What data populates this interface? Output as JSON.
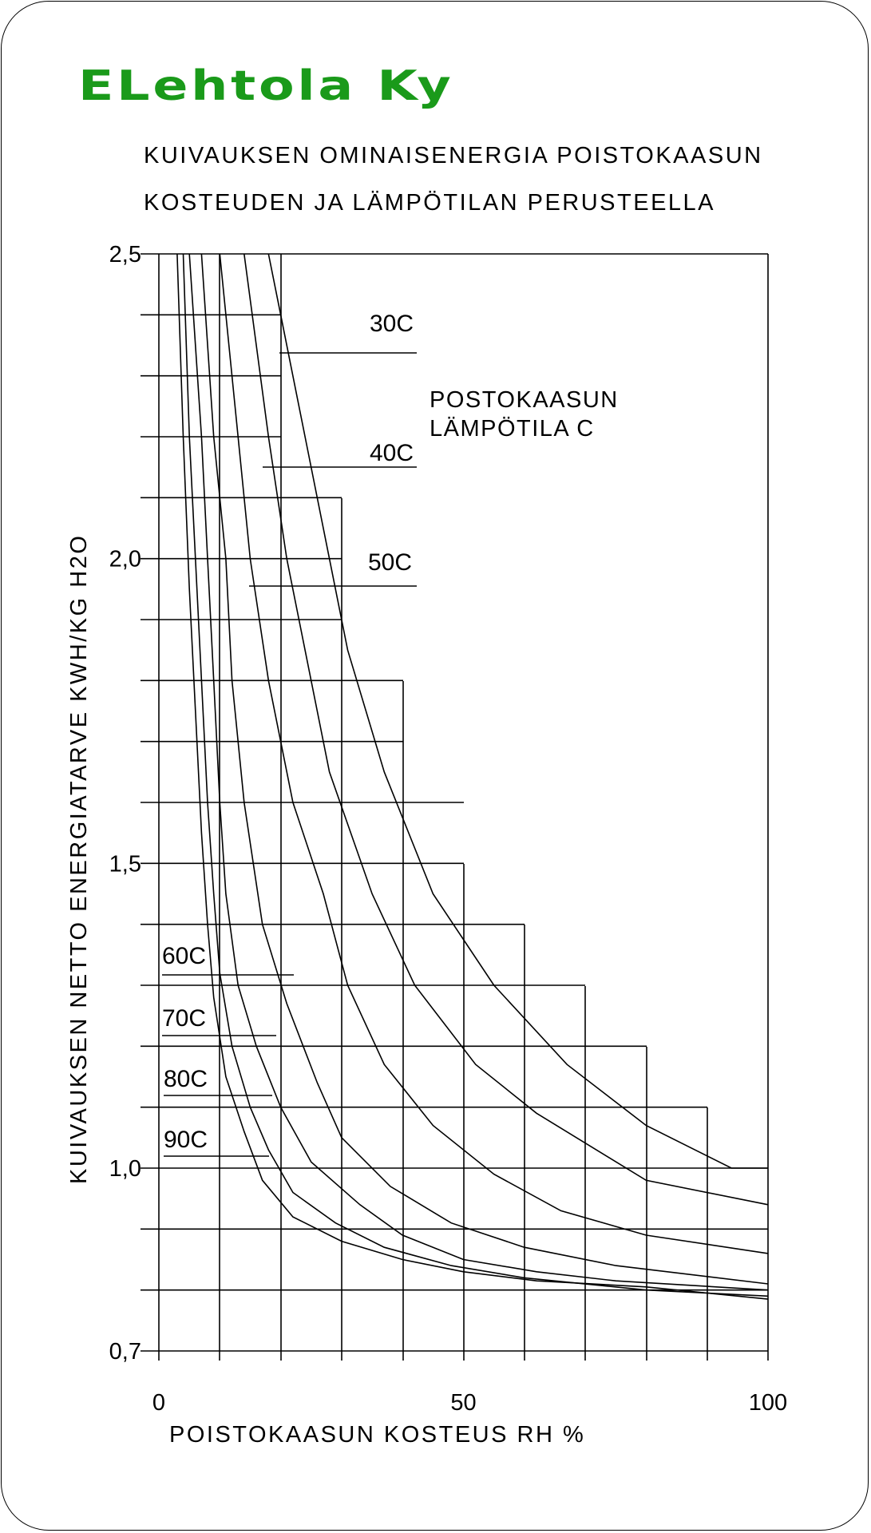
{
  "brand": {
    "name": "ELehtola Ky",
    "color": "#1a9a1a"
  },
  "chart_data": {
    "type": "line",
    "title_lines": [
      "KUIVAUKSEN OMINAISENERGIA POISTOKAASUN",
      "KOSTEUDEN JA LÄMPÖTILAN PERUSTEELLA"
    ],
    "xlabel": "POISTOKAASUN KOSTEUS RH %",
    "ylabel": "KUIVAUKSEN NETTO ENERGIATARVE KWH/KG H2O",
    "xlim": [
      0,
      100
    ],
    "ylim": [
      0.7,
      2.5
    ],
    "x_tick_labels": [
      {
        "value": 0,
        "label": "0"
      },
      {
        "value": 50,
        "label": "50"
      },
      {
        "value": 100,
        "label": "100"
      }
    ],
    "y_tick_labels": [
      {
        "value": 2.5,
        "label": "2,5"
      },
      {
        "value": 2.0,
        "label": "2,0"
      },
      {
        "value": 1.5,
        "label": "1,5"
      },
      {
        "value": 1.0,
        "label": "1,0"
      },
      {
        "value": 0.7,
        "label": "0,7"
      }
    ],
    "grid": true,
    "legend_title": [
      "POSTOKAASUN",
      "LÄMPÖTILA C"
    ],
    "series": [
      {
        "name": "30C",
        "points": [
          [
            18,
            2.5
          ],
          [
            20,
            2.4
          ],
          [
            24,
            2.2
          ],
          [
            28,
            2.0
          ],
          [
            31,
            1.85
          ],
          [
            37,
            1.65
          ],
          [
            45,
            1.45
          ],
          [
            55,
            1.3
          ],
          [
            67,
            1.17
          ],
          [
            80,
            1.07
          ],
          [
            94,
            1.0
          ],
          [
            100,
            1.0
          ]
        ]
      },
      {
        "name": "40C",
        "points": [
          [
            14,
            2.5
          ],
          [
            18,
            2.2
          ],
          [
            21,
            2.0
          ],
          [
            24,
            1.85
          ],
          [
            28,
            1.65
          ],
          [
            35,
            1.45
          ],
          [
            42,
            1.3
          ],
          [
            52,
            1.17
          ],
          [
            62,
            1.09
          ],
          [
            80,
            0.98
          ],
          [
            100,
            0.94
          ]
        ]
      },
      {
        "name": "50C",
        "points": [
          [
            10,
            2.5
          ],
          [
            13,
            2.2
          ],
          [
            15,
            2.0
          ],
          [
            18,
            1.8
          ],
          [
            22,
            1.6
          ],
          [
            27,
            1.45
          ],
          [
            31,
            1.3
          ],
          [
            37,
            1.17
          ],
          [
            45,
            1.07
          ],
          [
            55,
            0.99
          ],
          [
            66,
            0.93
          ],
          [
            80,
            0.89
          ],
          [
            100,
            0.86
          ]
        ]
      },
      {
        "name": "60C",
        "points": [
          [
            7,
            2.5
          ],
          [
            9,
            2.2
          ],
          [
            11,
            2.0
          ],
          [
            12,
            1.8
          ],
          [
            14,
            1.6
          ],
          [
            17,
            1.4
          ],
          [
            21,
            1.27
          ],
          [
            26,
            1.14
          ],
          [
            30,
            1.05
          ],
          [
            38,
            0.97
          ],
          [
            48,
            0.91
          ],
          [
            60,
            0.87
          ],
          [
            75,
            0.84
          ],
          [
            100,
            0.81
          ]
        ]
      },
      {
        "name": "70C",
        "points": [
          [
            5,
            2.5
          ],
          [
            7,
            2.2
          ],
          [
            8,
            2.0
          ],
          [
            9,
            1.8
          ],
          [
            10,
            1.6
          ],
          [
            11,
            1.45
          ],
          [
            13,
            1.3
          ],
          [
            16,
            1.2
          ],
          [
            20,
            1.1
          ],
          [
            25,
            1.01
          ],
          [
            33,
            0.94
          ],
          [
            40,
            0.89
          ],
          [
            50,
            0.85
          ],
          [
            62,
            0.83
          ],
          [
            75,
            0.815
          ],
          [
            100,
            0.8
          ]
        ]
      },
      {
        "name": "80C",
        "points": [
          [
            4,
            2.5
          ],
          [
            5,
            2.2
          ],
          [
            6,
            2.0
          ],
          [
            7,
            1.8
          ],
          [
            8,
            1.6
          ],
          [
            9,
            1.45
          ],
          [
            10,
            1.32
          ],
          [
            12,
            1.2
          ],
          [
            15,
            1.1
          ],
          [
            18,
            1.03
          ],
          [
            22,
            0.96
          ],
          [
            29,
            0.91
          ],
          [
            37,
            0.87
          ],
          [
            48,
            0.84
          ],
          [
            60,
            0.82
          ],
          [
            80,
            0.8
          ],
          [
            100,
            0.79
          ]
        ]
      },
      {
        "name": "90C",
        "points": [
          [
            3,
            2.5
          ],
          [
            4,
            2.2
          ],
          [
            5,
            1.95
          ],
          [
            6,
            1.75
          ],
          [
            7,
            1.55
          ],
          [
            8,
            1.4
          ],
          [
            9,
            1.28
          ],
          [
            11,
            1.15
          ],
          [
            14,
            1.06
          ],
          [
            17,
            0.98
          ],
          [
            22,
            0.92
          ],
          [
            30,
            0.88
          ],
          [
            40,
            0.85
          ],
          [
            50,
            0.83
          ],
          [
            62,
            0.815
          ],
          [
            80,
            0.805
          ],
          [
            100,
            0.785
          ]
        ]
      }
    ]
  }
}
